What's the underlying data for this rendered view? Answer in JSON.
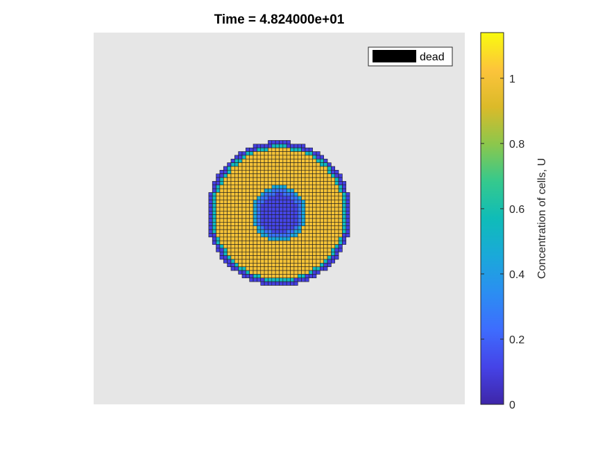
{
  "chart_data": {
    "type": "heatmap",
    "title": "Time = 4.824000e+01",
    "legend": {
      "entries": [
        "dead"
      ],
      "placement": "top-right"
    },
    "colorbar": {
      "label": "Concentration of cells, U",
      "ticks": [
        0,
        0.2,
        0.4,
        0.6,
        0.8,
        1
      ],
      "tick_labels": [
        "0",
        "0.2",
        "0.4",
        "0.6",
        "0.8",
        "1"
      ],
      "range": [
        0,
        1.14
      ],
      "colormap": "parula"
    },
    "grid_size": 100,
    "field": {
      "shape": "disc",
      "outer_radius_cells": 19.5,
      "inner_radius_cells": 6.5,
      "rim_value": 0.1,
      "bulk_value": 1.0,
      "inner_edge_value": 0.45,
      "core_value": 0.12
    },
    "background_color": "#e6e6e6",
    "dead_color": "#000000",
    "cell_edge_color": "#1f1f1f"
  }
}
